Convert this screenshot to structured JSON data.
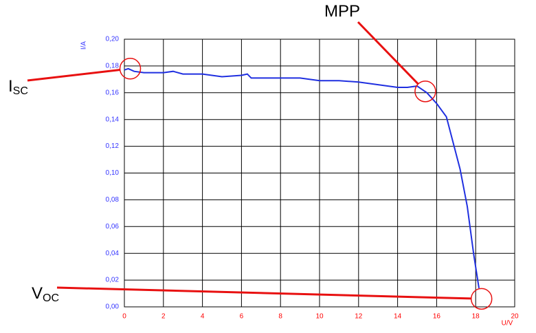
{
  "chart_data": {
    "type": "line",
    "xlabel": "U/V",
    "ylabel": "I/A",
    "x": [
      0,
      0.2,
      0.5,
      1,
      2,
      2.5,
      3,
      4,
      5,
      6,
      6.3,
      6.5,
      8,
      9,
      10,
      11,
      12,
      13,
      14,
      14.5,
      15,
      15.5,
      16,
      16.5,
      17.2,
      17.57,
      17.9,
      18.17
    ],
    "values": [
      0.177,
      0.178,
      0.176,
      0.175,
      0.175,
      0.176,
      0.174,
      0.174,
      0.172,
      0.173,
      0.174,
      0.171,
      0.171,
      0.171,
      0.169,
      0.169,
      0.168,
      0.166,
      0.164,
      0.164,
      0.165,
      0.16,
      0.152,
      0.142,
      0.103,
      0.075,
      0.039,
      0.014
    ],
    "color": "#1f2fe0",
    "xlim": [
      0,
      20
    ],
    "xticks": [
      0,
      2,
      4,
      6,
      8,
      10,
      12,
      14,
      16,
      18,
      20
    ],
    "ylim": [
      0,
      0.2
    ],
    "yticks": [
      {
        "value": 0,
        "label": "0,00"
      },
      {
        "value": 0.02,
        "label": "0,02"
      },
      {
        "value": 0.04,
        "label": "0,04"
      },
      {
        "value": 0.06,
        "label": "0,06"
      },
      {
        "value": 0.08,
        "label": "0,08"
      },
      {
        "value": 0.1,
        "label": "0,10"
      },
      {
        "value": 0.12,
        "label": "0,12"
      },
      {
        "value": 0.14,
        "label": "0,14"
      },
      {
        "value": 0.16,
        "label": "0,16"
      },
      {
        "value": 0.18,
        "label": "0,18"
      },
      {
        "value": 0.2,
        "label": "0,20"
      }
    ],
    "grid": true,
    "xtick_color": "#ff0000",
    "ytick_color": "#3333ff",
    "annotation_color": "#e81010",
    "annotations": [
      {
        "text": "I",
        "sub": "SC",
        "x": 0.3,
        "y": 0.178
      },
      {
        "text": "MPP",
        "x": 15.42,
        "y": 0.161
      },
      {
        "text": "V",
        "sub": "OC",
        "x": 18.3,
        "y": 0.006
      }
    ]
  }
}
